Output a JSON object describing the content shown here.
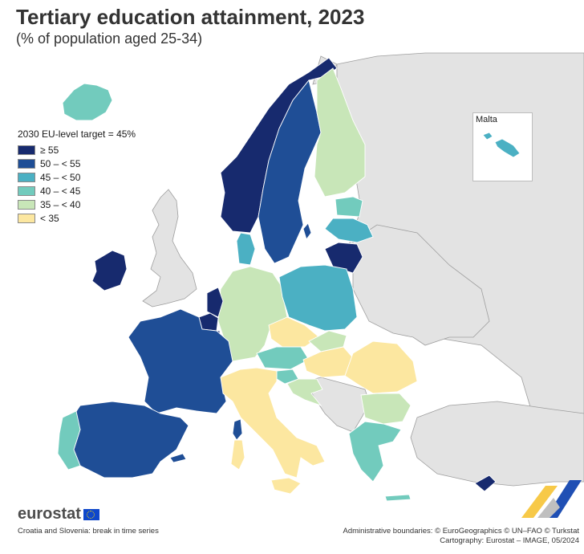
{
  "title": "Tertiary education attainment, 2023",
  "subtitle": "(% of population aged 25-34)",
  "legend": {
    "title": "2030 EU-level target = 45%",
    "classes": [
      {
        "label": "≥ 55",
        "color": "#172a6e"
      },
      {
        "label": "50 – < 55",
        "color": "#1f4e96"
      },
      {
        "label": "45 – < 50",
        "color": "#4bb0c3"
      },
      {
        "label": "40 – < 45",
        "color": "#72cbbd"
      },
      {
        "label": "35 – < 40",
        "color": "#c8e6b8"
      },
      {
        "label": "< 35",
        "color": "#fce7a0"
      }
    ]
  },
  "colors": {
    "no_data": "#e3e3e3",
    "sea": "#ffffff",
    "border": "#ffffff",
    "outline": "#9e9e9e"
  },
  "inset": {
    "label": "Malta"
  },
  "brand": {
    "name": "eurostat"
  },
  "footnote": "Croatia and Slovenia: break in time series",
  "credits": [
    "Administrative boundaries: © EuroGeographics © UN–FAO © Turkstat",
    "Cartography: Eurostat – IMAGE, 05/2024"
  ]
}
